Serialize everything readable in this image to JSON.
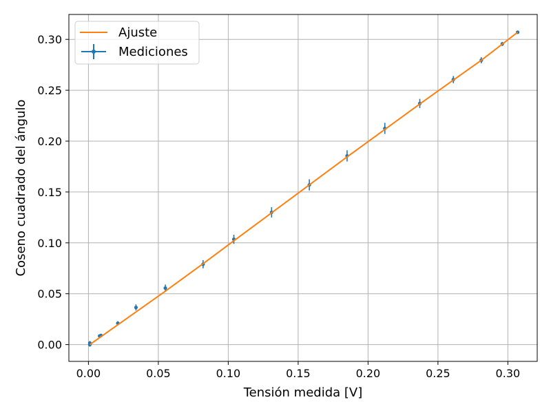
{
  "chart_data": {
    "type": "scatter",
    "xlabel": "Tensión medida [V]",
    "ylabel": "Coseno cuadrado del ángulo",
    "xlim": [
      -0.014,
      0.321
    ],
    "ylim": [
      -0.0165,
      0.3245
    ],
    "x_ticks": [
      "0.00",
      "0.05",
      "0.10",
      "0.15",
      "0.20",
      "0.25",
      "0.30"
    ],
    "y_ticks": [
      "0.00",
      "0.05",
      "0.10",
      "0.15",
      "0.20",
      "0.25",
      "0.30"
    ],
    "grid": true,
    "legend_position": "top-left",
    "legend": [
      "Ajuste",
      "Mediciones"
    ],
    "series": [
      {
        "name": "Mediciones",
        "kind": "errorbar",
        "color": "#1f77b4",
        "x": [
          0.001,
          0.001,
          0.008,
          0.009,
          0.021,
          0.034,
          0.055,
          0.082,
          0.104,
          0.131,
          0.158,
          0.185,
          0.212,
          0.237,
          0.261,
          0.281,
          0.296,
          0.307
        ],
        "y": [
          0.0,
          0.0015,
          0.0085,
          0.009,
          0.021,
          0.0365,
          0.0555,
          0.079,
          0.1035,
          0.13,
          0.157,
          0.1855,
          0.2125,
          0.237,
          0.2605,
          0.2795,
          0.2955,
          0.307
        ],
        "yerr": [
          0.002,
          0.002,
          0.0015,
          0.0015,
          0.002,
          0.003,
          0.0035,
          0.004,
          0.0045,
          0.005,
          0.0055,
          0.0055,
          0.0055,
          0.0045,
          0.0035,
          0.003,
          0.002,
          0.001
        ]
      },
      {
        "name": "Ajuste",
        "kind": "line",
        "color": "#ff7f0e",
        "x": [
          0.001,
          0.055,
          0.082,
          0.104,
          0.131,
          0.158,
          0.185,
          0.212,
          0.237,
          0.261,
          0.281,
          0.307
        ],
        "y": [
          0.0,
          0.0525,
          0.0795,
          0.102,
          0.1295,
          0.157,
          0.1845,
          0.2115,
          0.2365,
          0.26,
          0.2795,
          0.307
        ]
      }
    ]
  }
}
